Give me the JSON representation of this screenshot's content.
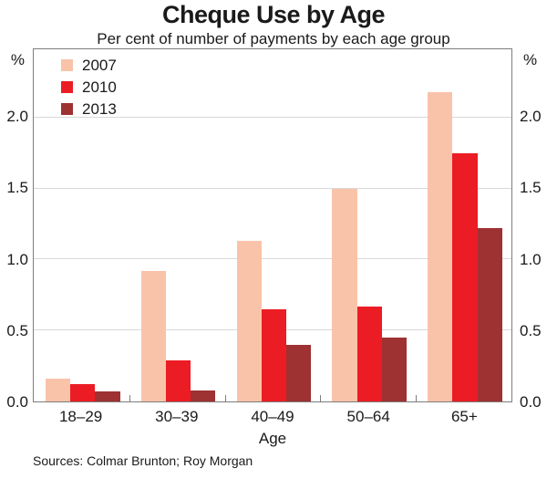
{
  "title": "Cheque Use by Age",
  "subtitle": "Per cent of number of payments by each age group",
  "unit_left": "%",
  "unit_right": "%",
  "xlabel": "Age",
  "source": "Sources: Colmar Brunton; Roy Morgan",
  "colors": {
    "series_2007": "#f9c3aa",
    "series_2010": "#ec1c24",
    "series_2013": "#9e3132",
    "axis_border": "#7d7d7d",
    "gridline": "#d8d8d8",
    "text": "#1a1a1a"
  },
  "chart_data": {
    "type": "bar",
    "title": "Cheque Use by Age",
    "subtitle": "Per cent of number of payments by each age group",
    "categories": [
      "18–29",
      "30–39",
      "40–49",
      "50–64",
      "65+"
    ],
    "series": [
      {
        "name": "2007",
        "color": "#f9c3aa",
        "values": [
          0.16,
          0.92,
          1.13,
          1.5,
          2.18
        ]
      },
      {
        "name": "2010",
        "color": "#ec1c24",
        "values": [
          0.12,
          0.29,
          0.65,
          0.67,
          1.75
        ]
      },
      {
        "name": "2013",
        "color": "#9e3132",
        "values": [
          0.07,
          0.08,
          0.4,
          0.45,
          1.22
        ]
      }
    ],
    "xlabel": "Age",
    "ylabel": "%",
    "ylim": [
      0,
      2.48
    ],
    "yticks": [
      0.0,
      0.5,
      1.0,
      1.5,
      2.0
    ],
    "ytick_labels": [
      "0.0",
      "0.5",
      "1.0",
      "1.5",
      "2.0"
    ],
    "grid": true,
    "legend_position": "upper left",
    "legend_entries": [
      "2007",
      "2010",
      "2013"
    ]
  }
}
